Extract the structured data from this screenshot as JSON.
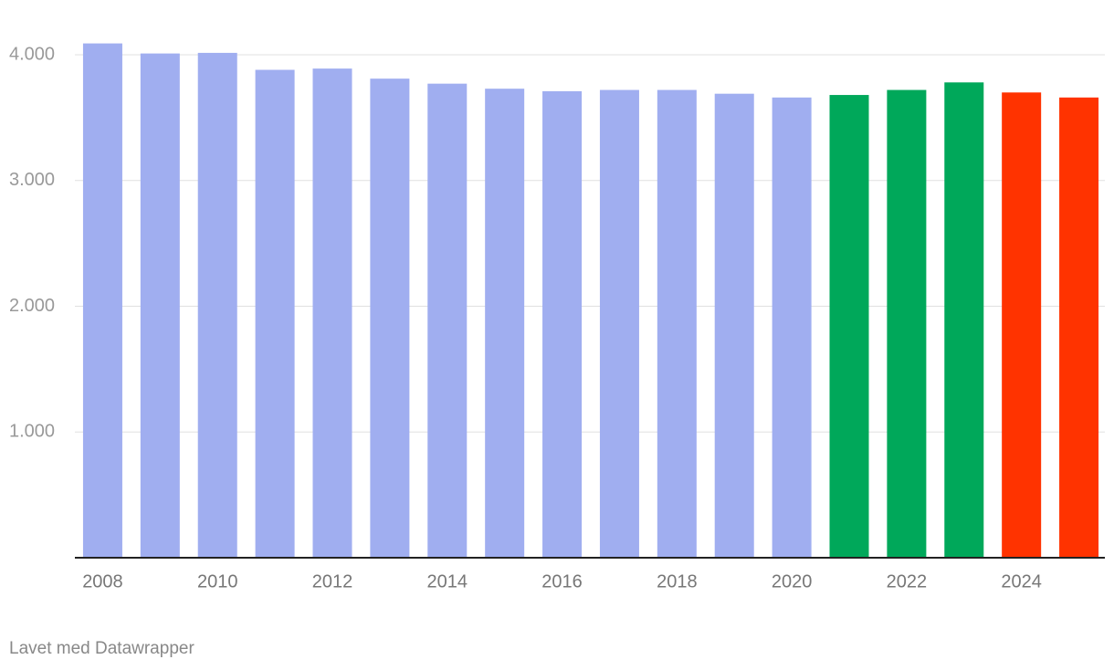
{
  "chart_data": {
    "type": "bar",
    "categories": [
      "2008",
      null,
      "2010",
      null,
      "2012",
      null,
      "2014",
      null,
      "2016",
      null,
      "2018",
      null,
      "2020",
      null,
      "2022",
      null,
      "2024",
      null
    ],
    "values": [
      4090,
      4010,
      4015,
      3880,
      3890,
      3810,
      3770,
      3730,
      3710,
      3720,
      3720,
      3690,
      3660,
      3680,
      3720,
      3780,
      3700,
      3660
    ],
    "colors": [
      "#a0aef0",
      "#a0aef0",
      "#a0aef0",
      "#a0aef0",
      "#a0aef0",
      "#a0aef0",
      "#a0aef0",
      "#a0aef0",
      "#a0aef0",
      "#a0aef0",
      "#a0aef0",
      "#a0aef0",
      "#a0aef0",
      "#00a85a",
      "#00a85a",
      "#00a85a",
      "#ff3300",
      "#ff3300"
    ],
    "ylim": [
      0,
      4100
    ],
    "yticks": [
      {
        "value": 1000,
        "label": "1.000"
      },
      {
        "value": 2000,
        "label": "2.000"
      },
      {
        "value": 3000,
        "label": "3.000"
      },
      {
        "value": 4000,
        "label": "4.000"
      }
    ],
    "grid": true,
    "footer": "Lavet med Datawrapper"
  }
}
